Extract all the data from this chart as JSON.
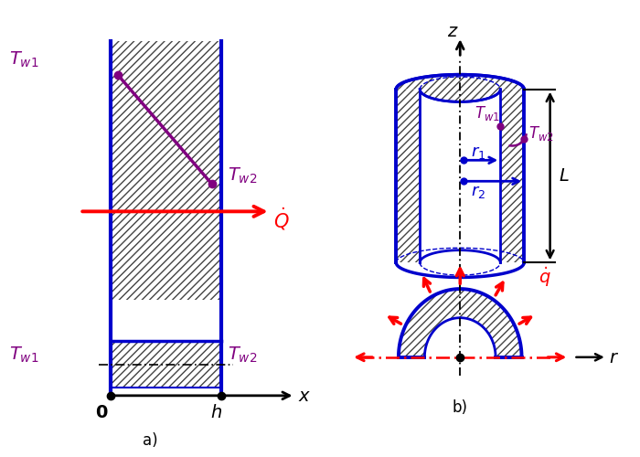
{
  "blue": "#0000CC",
  "purple": "#800080",
  "red": "#FF0000",
  "black": "#000000",
  "hatch_color": "#444444",
  "bg": "#FFFFFF",
  "label_a": "a)",
  "label_b": "b)"
}
